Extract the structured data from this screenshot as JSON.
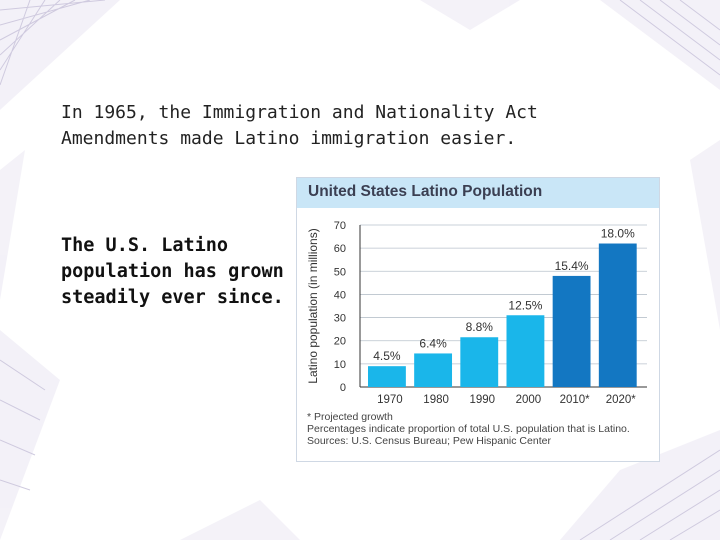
{
  "slide": {
    "intro_text": "In 1965, the Immigration and Nationality Act Amendments made Latino immigration easier.",
    "side_text": "The U.S. Latino population has grown steadily ever since."
  },
  "colors": {
    "bar_actual": "#1ab6ea",
    "bar_projected": "#1377c2",
    "header_bg": "#c9e6f7",
    "deco": "#a9a0c6"
  },
  "chart_data": {
    "type": "bar",
    "title": "United States Latino Population",
    "xlabel": "",
    "ylabel": "Latino population (in millions)",
    "ylim": [
      0,
      70
    ],
    "yticks": [
      0,
      10,
      20,
      30,
      40,
      50,
      60,
      70
    ],
    "categories": [
      "1970",
      "1980",
      "1990",
      "2000",
      "2010*",
      "2020*"
    ],
    "values": [
      9,
      14.5,
      21.5,
      31,
      48,
      62
    ],
    "labels": [
      "4.5%",
      "6.4%",
      "8.8%",
      "12.5%",
      "15.4%",
      "18.0%"
    ],
    "projected": [
      false,
      false,
      false,
      false,
      true,
      true
    ],
    "notes": [
      "* Projected growth",
      "Percentages indicate proportion of total U.S. population that is Latino.",
      "Sources: U.S. Census Bureau; Pew Hispanic Center"
    ]
  }
}
